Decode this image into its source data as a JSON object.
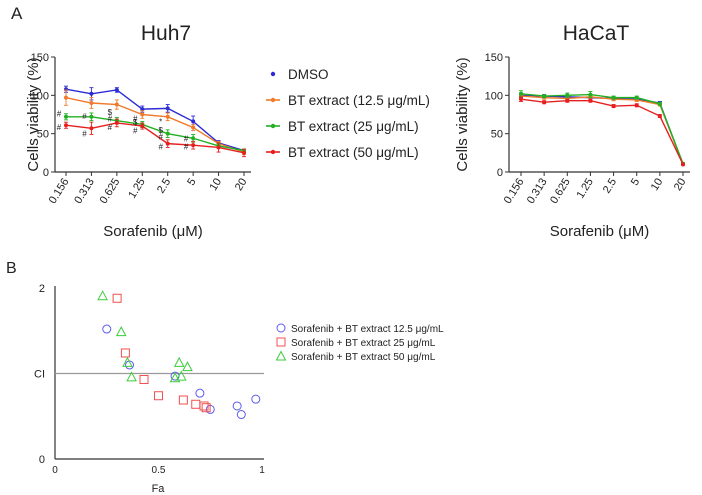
{
  "panel_labels": {
    "a": "A",
    "b": "B"
  },
  "colors": {
    "DMSO": "#2b2bd6",
    "bt12": "#f07a2a",
    "bt25": "#22b022",
    "bt50": "#e62020",
    "axis": "#333333",
    "refline": "#9a9a9a"
  },
  "chart_data": [
    {
      "type": "line",
      "id": "huh7",
      "title": "Huh7",
      "xlabel": "Sorafenib (μM)",
      "ylabel": "Cells viability (%)",
      "categories": [
        "0.156",
        "0.313",
        "0.625",
        "1.25",
        "2.5",
        "5",
        "10",
        "20"
      ],
      "ylim": [
        0,
        150
      ],
      "yticks": [
        "0",
        "50",
        "100",
        "150"
      ],
      "series": [
        {
          "name": "DMSO",
          "color": "#2b2bd6",
          "values": [
            108,
            102,
            107,
            82,
            83,
            66,
            38,
            28
          ],
          "errors": [
            4,
            8,
            3,
            4,
            5,
            7,
            3,
            2
          ]
        },
        {
          "name": "BT extract (12.5 μg/mL)",
          "color": "#f07a2a",
          "values": [
            97,
            90,
            88,
            75,
            72,
            58,
            37,
            26
          ],
          "errors": [
            10,
            7,
            6,
            5,
            5,
            4,
            3,
            3
          ]
        },
        {
          "name": "BT extract (25 μg/mL)",
          "color": "#22b022",
          "values": [
            72,
            72,
            67,
            62,
            50,
            44,
            34,
            28
          ],
          "errors": [
            4,
            5,
            4,
            4,
            5,
            5,
            3,
            2
          ]
        },
        {
          "name": "BT extract (50 μg/mL)",
          "color": "#e62020",
          "values": [
            61,
            57,
            64,
            60,
            37,
            35,
            32,
            25
          ],
          "errors": [
            4,
            8,
            5,
            4,
            5,
            5,
            6,
            5
          ]
        }
      ],
      "annotations": [
        {
          "text": "#",
          "category": "0.156",
          "value": 76
        },
        {
          "text": "#",
          "category": "0.156",
          "value": 59
        },
        {
          "text": "#",
          "category": "0.313",
          "value": 73
        },
        {
          "text": "#",
          "category": "0.313",
          "value": 50
        },
        {
          "text": "$",
          "category": "0.625",
          "value": 78
        },
        {
          "text": "#",
          "category": "0.625",
          "value": 70
        },
        {
          "text": "#",
          "category": "0.625",
          "value": 59
        },
        {
          "text": "#",
          "category": "1.25",
          "value": 70
        },
        {
          "text": "#",
          "category": "1.25",
          "value": 54
        },
        {
          "text": "$",
          "category": "1.25",
          "value": 65
        },
        {
          "text": "*",
          "category": "2.5",
          "value": 66
        },
        {
          "text": "$",
          "category": "2.5",
          "value": 55
        },
        {
          "text": "#",
          "category": "2.5",
          "value": 46
        },
        {
          "text": "#",
          "category": "2.5",
          "value": 33
        },
        {
          "text": "#",
          "category": "5",
          "value": 44
        },
        {
          "text": "#",
          "category": "5",
          "value": 33
        }
      ],
      "legend": {
        "placement": "right",
        "entries": [
          "DMSO",
          "BT extract (12.5 μg/mL)",
          "BT extract (25 μg/mL)",
          "BT extract (50 μg/mL)"
        ]
      }
    },
    {
      "type": "line",
      "id": "hacat",
      "title": "HaCaT",
      "xlabel": "Sorafenib (μM)",
      "ylabel": "Cells viability (%)",
      "categories": [
        "0.156",
        "0.313",
        "0.625",
        "1.25",
        "2.5",
        "5",
        "10",
        "20"
      ],
      "ylim": [
        0,
        150
      ],
      "yticks": [
        "0",
        "50",
        "100",
        "150"
      ],
      "series": [
        {
          "name": "DMSO",
          "color": "#2b2bd6",
          "values": [
            100,
            99,
            98,
            97,
            96,
            95,
            90,
            10
          ],
          "errors": [
            3,
            2,
            2,
            2,
            2,
            2,
            2,
            1
          ]
        },
        {
          "name": "BT extract (12.5 μg/mL)",
          "color": "#f07a2a",
          "values": [
            99,
            97,
            96,
            98,
            95,
            94,
            88,
            10
          ],
          "errors": [
            3,
            2,
            2,
            2,
            2,
            2,
            2,
            1
          ]
        },
        {
          "name": "BT extract (25 μg/mL)",
          "color": "#22b022",
          "values": [
            102,
            99,
            100,
            101,
            97,
            97,
            89,
            11
          ],
          "errors": [
            4,
            2,
            3,
            4,
            2,
            2,
            2,
            1
          ]
        },
        {
          "name": "BT extract (50 μg/mL)",
          "color": "#e62020",
          "values": [
            95,
            91,
            93,
            93,
            86,
            87,
            73,
            10
          ],
          "errors": [
            3,
            2,
            2,
            2,
            2,
            2,
            2,
            1
          ]
        }
      ]
    },
    {
      "type": "scatter",
      "id": "ci",
      "title": "",
      "xlabel": "Fa",
      "ylabel": "CI",
      "xlim": [
        0,
        1
      ],
      "ylim": [
        0,
        2
      ],
      "xticks": [
        "0",
        "0.5",
        "1"
      ],
      "yticks": [
        "0",
        "1",
        "2"
      ],
      "reference_line": 1,
      "series": [
        {
          "name": "Sorafenib + BT extract 12.5 μg/mL",
          "marker": "circle",
          "color": "#5b5bf0",
          "x": [
            0.25,
            0.36,
            0.58,
            0.7,
            0.75,
            0.88,
            0.9,
            0.97
          ],
          "y": [
            1.52,
            1.1,
            0.97,
            0.77,
            0.58,
            0.62,
            0.52,
            0.7
          ]
        },
        {
          "name": "Sorafenib + BT extract 25 μg/mL",
          "marker": "square",
          "color": "#f05050",
          "x": [
            0.3,
            0.34,
            0.43,
            0.5,
            0.62,
            0.68,
            0.72,
            0.73
          ],
          "y": [
            1.88,
            1.24,
            0.93,
            0.74,
            0.69,
            0.64,
            0.62,
            0.6
          ]
        },
        {
          "name": "Sorafenib + BT extract 50 μg/mL",
          "marker": "triangle",
          "color": "#3ccc3c",
          "x": [
            0.23,
            0.32,
            0.35,
            0.37,
            0.58,
            0.6,
            0.61,
            0.64
          ],
          "y": [
            1.91,
            1.49,
            1.13,
            0.96,
            0.95,
            1.13,
            0.97,
            1.08
          ]
        }
      ],
      "legend": {
        "placement": "right",
        "entries": [
          "Sorafenib + BT extract 12.5 μg/mL",
          "Sorafenib + BT extract 25 μg/mL",
          "Sorafenib + BT extract 50 μg/mL"
        ]
      }
    }
  ]
}
